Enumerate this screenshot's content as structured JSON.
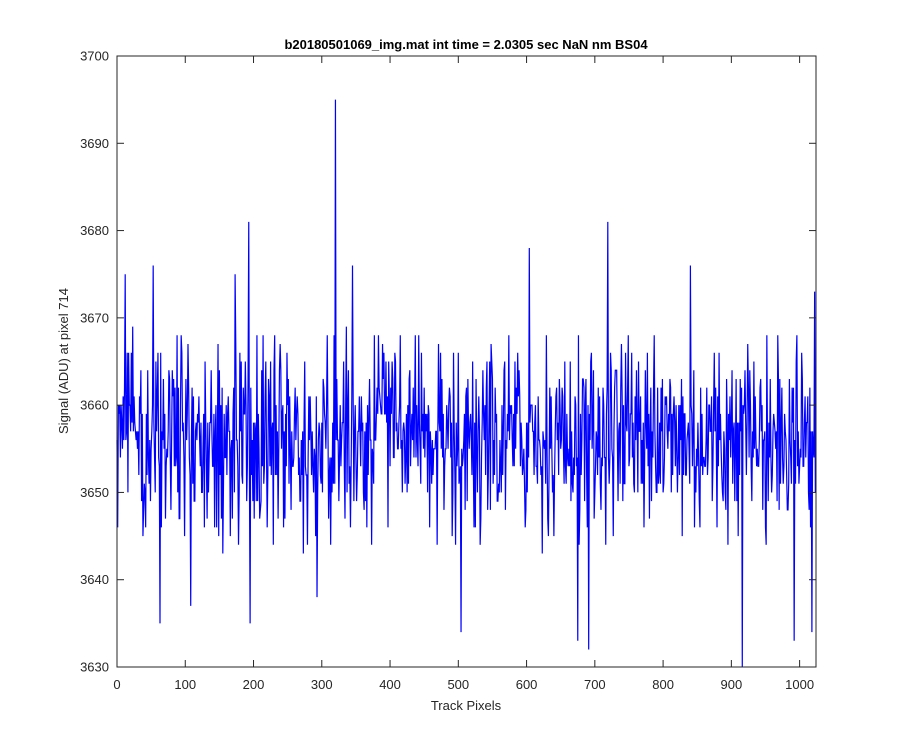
{
  "chart_data": {
    "type": "line",
    "title": "b20180501069_img.mat int time = 2.0305 sec  NaN nm BS04",
    "xlabel": "Track Pixels",
    "ylabel": "Signal (ADU) at pixel 714",
    "xlim": [
      0,
      1024
    ],
    "ylim": [
      3630,
      3700
    ],
    "xticks": [
      0,
      100,
      200,
      300,
      400,
      500,
      600,
      700,
      800,
      900,
      1000
    ],
    "yticks": [
      3630,
      3640,
      3650,
      3660,
      3670,
      3680,
      3690,
      3700
    ],
    "grid": false,
    "line_color": "#0000ff",
    "series": [
      {
        "n_points": 1024,
        "mean": 3656,
        "noise_std": 5.8,
        "min": 3630,
        "max": 3695,
        "notable_points": [
          {
            "x": 1,
            "y": 3646
          },
          {
            "x": 12,
            "y": 3675
          },
          {
            "x": 53,
            "y": 3676
          },
          {
            "x": 63,
            "y": 3635
          },
          {
            "x": 108,
            "y": 3637
          },
          {
            "x": 173,
            "y": 3675
          },
          {
            "x": 193,
            "y": 3681
          },
          {
            "x": 195,
            "y": 3635
          },
          {
            "x": 293,
            "y": 3638
          },
          {
            "x": 320,
            "y": 3695
          },
          {
            "x": 345,
            "y": 3676
          },
          {
            "x": 504,
            "y": 3634
          },
          {
            "x": 604,
            "y": 3678
          },
          {
            "x": 675,
            "y": 3633
          },
          {
            "x": 691,
            "y": 3632
          },
          {
            "x": 719,
            "y": 3681
          },
          {
            "x": 840,
            "y": 3676
          },
          {
            "x": 916,
            "y": 3630
          },
          {
            "x": 992,
            "y": 3633
          },
          {
            "x": 1018,
            "y": 3634
          },
          {
            "x": 1022,
            "y": 3673
          }
        ]
      }
    ]
  }
}
